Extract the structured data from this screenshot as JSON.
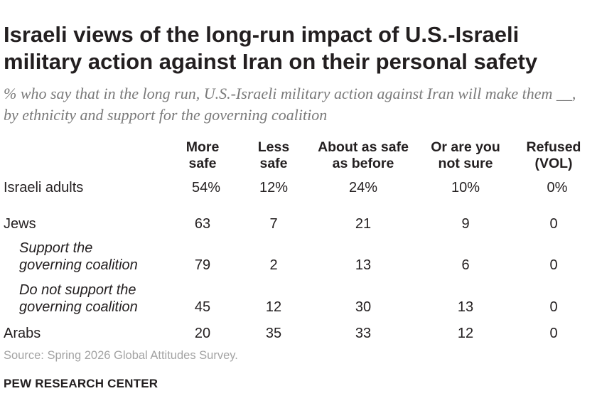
{
  "chart_data": {
    "type": "table",
    "title": "Israeli views of the long-run impact of U.S.-Israeli military action against Iran on their personal safety",
    "subtitle": "% who say that in the long run, U.S.-Israeli military action against Iran will make them __, by ethnicity and support for the governing coalition",
    "columns": [
      {
        "line1": "More",
        "line2": "safe"
      },
      {
        "line1": "Less",
        "line2": "safe"
      },
      {
        "line1": "About as safe",
        "line2": "as before"
      },
      {
        "line1": "Or are you",
        "line2": "not sure"
      },
      {
        "line1": "Refused",
        "line2": "(VOL)"
      }
    ],
    "rows": [
      {
        "label": "Israeli adults",
        "label2": "",
        "values": [
          "54%",
          "12%",
          "24%",
          "10%",
          "0%"
        ]
      },
      {
        "label": "Jews",
        "label2": "",
        "values": [
          "63",
          "7",
          "21",
          "9",
          "0"
        ]
      },
      {
        "label": "Support the",
        "label2": "governing coalition",
        "values": [
          "79",
          "2",
          "13",
          "6",
          "0"
        ]
      },
      {
        "label": "Do not support the",
        "label2": "governing coalition",
        "values": [
          "45",
          "12",
          "30",
          "13",
          "0"
        ]
      },
      {
        "label": "Arabs",
        "label2": "",
        "values": [
          "20",
          "35",
          "33",
          "12",
          "0"
        ]
      }
    ]
  },
  "source": "Source: Spring 2026 Global Attitudes Survey.",
  "brand": "PEW RESEARCH CENTER"
}
